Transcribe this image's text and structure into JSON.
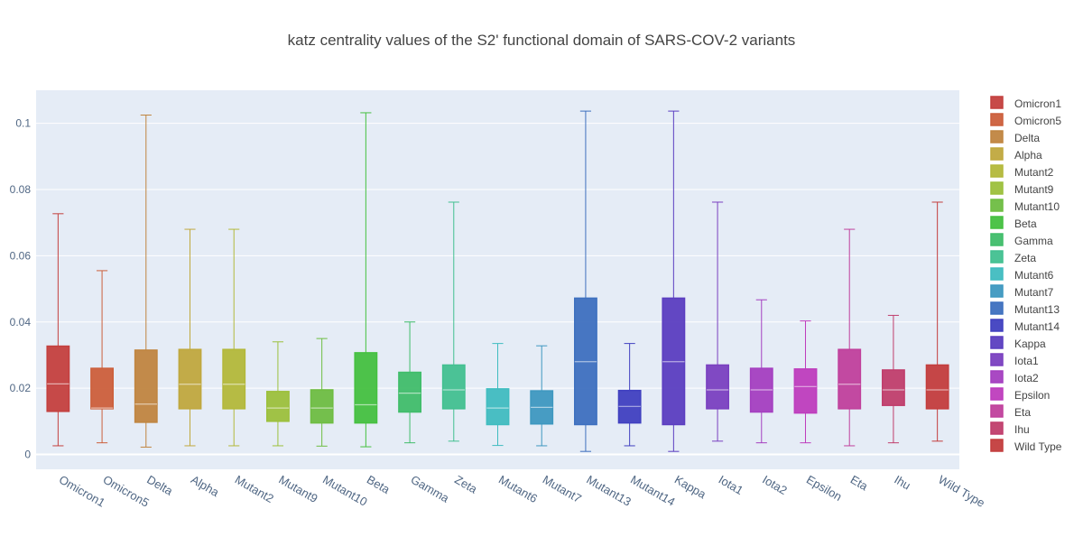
{
  "chart_data": {
    "type": "box",
    "title": "katz centrality values of the S2' functional domain of SARS-COV-2 variants",
    "xlabel": "",
    "ylabel": "",
    "ylim": [
      -0.0045,
      0.11
    ],
    "yticks": [
      0,
      0.02,
      0.04,
      0.06,
      0.08,
      0.1
    ],
    "ytick_labels": [
      "0",
      "0.02",
      "0.04",
      "0.06",
      "0.08",
      "0.1"
    ],
    "grid": true,
    "legend_position": "right",
    "plot_background": "#e5ecf6",
    "series": [
      {
        "name": "Omicron1",
        "color": "#c4403e",
        "min": 0.0026,
        "q1": 0.013,
        "median": 0.0213,
        "q3": 0.0327,
        "max": 0.0727
      },
      {
        "name": "Omicron5",
        "color": "#cc5f3b",
        "min": 0.0035,
        "q1": 0.0138,
        "median": 0.014,
        "q3": 0.026,
        "max": 0.0555
      },
      {
        "name": "Delta",
        "color": "#c08540",
        "min": 0.0022,
        "q1": 0.0097,
        "median": 0.0152,
        "q3": 0.0315,
        "max": 0.1025
      },
      {
        "name": "Alpha",
        "color": "#c0a83e",
        "min": 0.0026,
        "q1": 0.0138,
        "median": 0.0212,
        "q3": 0.0317,
        "max": 0.068
      },
      {
        "name": "Mutant2",
        "color": "#b3b83a",
        "min": 0.0026,
        "q1": 0.0138,
        "median": 0.0212,
        "q3": 0.0317,
        "max": 0.068
      },
      {
        "name": "Mutant9",
        "color": "#9cc03c",
        "min": 0.0026,
        "q1": 0.01,
        "median": 0.014,
        "q3": 0.019,
        "max": 0.034
      },
      {
        "name": "Mutant10",
        "color": "#6ebd42",
        "min": 0.0025,
        "q1": 0.0095,
        "median": 0.014,
        "q3": 0.0195,
        "max": 0.035
      },
      {
        "name": "Beta",
        "color": "#45c040",
        "min": 0.0023,
        "q1": 0.0095,
        "median": 0.015,
        "q3": 0.0307,
        "max": 0.1032
      },
      {
        "name": "Gamma",
        "color": "#40bd6a",
        "min": 0.0035,
        "q1": 0.0128,
        "median": 0.0185,
        "q3": 0.0248,
        "max": 0.04
      },
      {
        "name": "Zeta",
        "color": "#42c090",
        "min": 0.004,
        "q1": 0.0138,
        "median": 0.0195,
        "q3": 0.027,
        "max": 0.0762
      },
      {
        "name": "Mutant6",
        "color": "#40bcc0",
        "min": 0.0027,
        "q1": 0.009,
        "median": 0.014,
        "q3": 0.0198,
        "max": 0.0335
      },
      {
        "name": "Mutant7",
        "color": "#3e98c0",
        "min": 0.0026,
        "q1": 0.0092,
        "median": 0.0142,
        "q3": 0.0192,
        "max": 0.0328
      },
      {
        "name": "Mutant13",
        "color": "#3e70bf",
        "min": 0.0009,
        "q1": 0.009,
        "median": 0.028,
        "q3": 0.0472,
        "max": 0.1037
      },
      {
        "name": "Mutant14",
        "color": "#4040c0",
        "min": 0.0026,
        "q1": 0.0095,
        "median": 0.0145,
        "q3": 0.0193,
        "max": 0.0335
      },
      {
        "name": "Kappa",
        "color": "#5b3ec0",
        "min": 0.0009,
        "q1": 0.009,
        "median": 0.028,
        "q3": 0.0472,
        "max": 0.1037
      },
      {
        "name": "Iota1",
        "color": "#7a40c0",
        "min": 0.004,
        "q1": 0.0138,
        "median": 0.0195,
        "q3": 0.027,
        "max": 0.0762
      },
      {
        "name": "Iota2",
        "color": "#a43fc0",
        "min": 0.0035,
        "q1": 0.0128,
        "median": 0.0195,
        "q3": 0.026,
        "max": 0.0467
      },
      {
        "name": "Epsilon",
        "color": "#be3dbd",
        "min": 0.0035,
        "q1": 0.0125,
        "median": 0.0205,
        "q3": 0.0258,
        "max": 0.0403
      },
      {
        "name": "Eta",
        "color": "#c0409c",
        "min": 0.0026,
        "q1": 0.0138,
        "median": 0.0212,
        "q3": 0.0317,
        "max": 0.068
      },
      {
        "name": "Ihu",
        "color": "#c03e6c",
        "min": 0.0035,
        "q1": 0.0148,
        "median": 0.0195,
        "q3": 0.0255,
        "max": 0.042
      },
      {
        "name": "Wild Type",
        "color": "#c33d3d",
        "min": 0.004,
        "q1": 0.0138,
        "median": 0.0195,
        "q3": 0.027,
        "max": 0.0762
      }
    ]
  }
}
